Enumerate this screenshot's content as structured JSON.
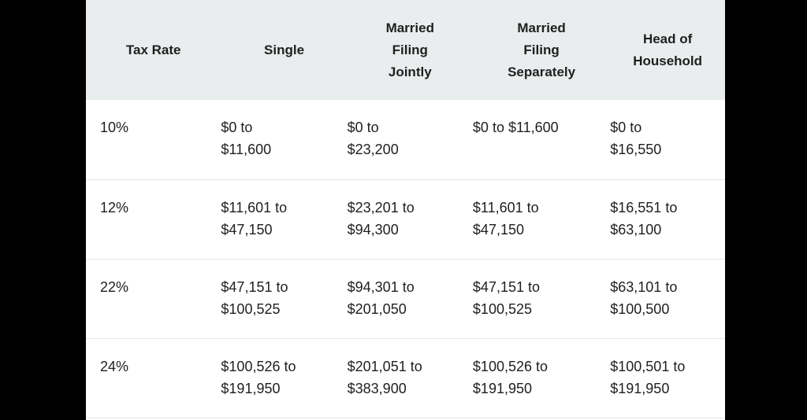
{
  "table": {
    "headers": [
      "Tax Rate",
      "Single",
      "Married\nFiling\nJointly",
      "Married\nFiling\nSeparately",
      "Head of\nHousehold"
    ],
    "rows": [
      {
        "rate": "10%",
        "single": "$0 to\n$11,600",
        "joint": "$0 to\n$23,200",
        "separate": "$0 to $11,600",
        "head": "$0 to\n$16,550"
      },
      {
        "rate": "12%",
        "single": "$11,601 to\n$47,150",
        "joint": "$23,201 to\n$94,300",
        "separate": "$11,601 to\n$47,150",
        "head": "$16,551 to\n$63,100"
      },
      {
        "rate": "22%",
        "single": "$47,151 to\n$100,525",
        "joint": "$94,301 to\n$201,050",
        "separate": "$47,151 to\n$100,525",
        "head": "$63,101 to\n$100,500"
      },
      {
        "rate": "24%",
        "single": "$100,526 to\n$191,950",
        "joint": "$201,051 to\n$383,900",
        "separate": "$100,526 to\n$191,950",
        "head": "$100,501 to\n$191,950"
      }
    ]
  }
}
